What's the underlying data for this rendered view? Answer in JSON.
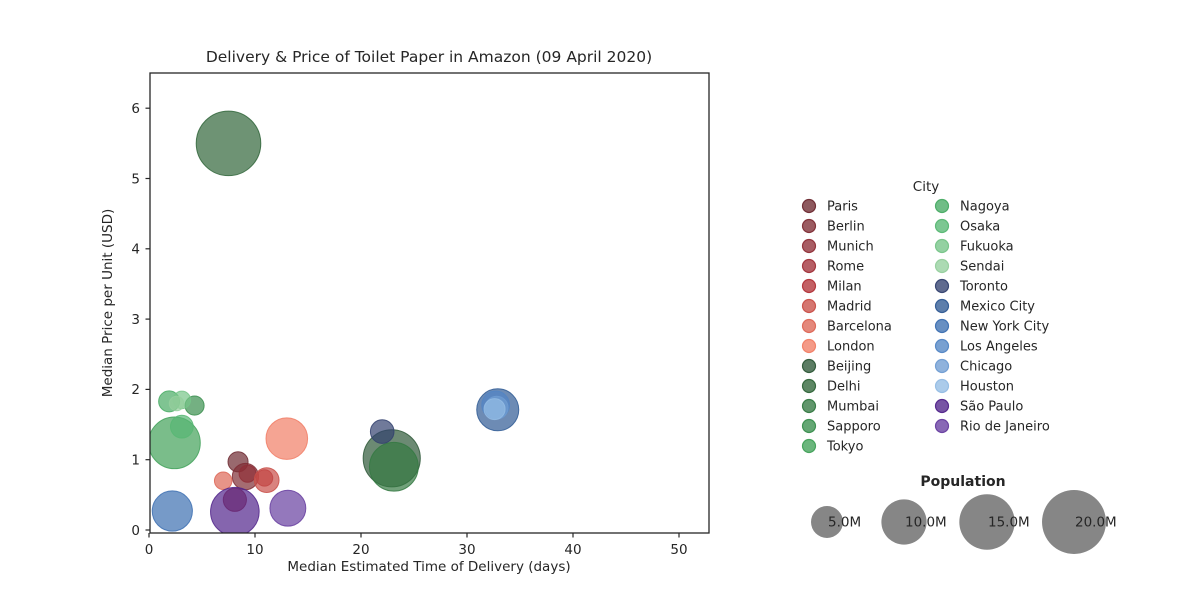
{
  "title": "Delivery & Price of Toilet Paper in Amazon (09 April 2020)",
  "axes": {
    "x_label": "Median Estimated Time of Delivery (days)",
    "y_label": "Median Price per Unit (USD)",
    "x_ticks": [
      0,
      10,
      20,
      30,
      40,
      50
    ],
    "y_ticks": [
      0,
      1,
      2,
      3,
      4,
      5,
      6
    ]
  },
  "legend": {
    "title": "City",
    "column1": [
      {
        "label": "Paris",
        "color": "#6e2a31"
      },
      {
        "label": "Berlin",
        "color": "#7f2d35"
      },
      {
        "label": "Munich",
        "color": "#902f38"
      },
      {
        "label": "Rome",
        "color": "#a1313a"
      },
      {
        "label": "Milan",
        "color": "#b23339"
      },
      {
        "label": "Madrid",
        "color": "#c94f48"
      },
      {
        "label": "Barcelona",
        "color": "#dd6656"
      },
      {
        "label": "London",
        "color": "#f17d65"
      },
      {
        "label": "Beijing",
        "color": "#2e5838"
      },
      {
        "label": "Delhi",
        "color": "#306539"
      },
      {
        "label": "Mumbai",
        "color": "#347942"
      },
      {
        "label": "Sapporo",
        "color": "#398e4d"
      },
      {
        "label": "Tokyo",
        "color": "#41a159"
      }
    ],
    "column2": [
      {
        "label": "Nagoya",
        "color": "#48ab64"
      },
      {
        "label": "Osaka",
        "color": "#57b773"
      },
      {
        "label": "Fukuoka",
        "color": "#76c488"
      },
      {
        "label": "Sendai",
        "color": "#95cf9d"
      },
      {
        "label": "Toronto",
        "color": "#33416f"
      },
      {
        "label": "Mexico City",
        "color": "#2f5a94"
      },
      {
        "label": "New York City",
        "color": "#3c6fb1"
      },
      {
        "label": "Los Angeles",
        "color": "#5285c4"
      },
      {
        "label": "Chicago",
        "color": "#6f9cd2"
      },
      {
        "label": "Houston",
        "color": "#94bce4"
      },
      {
        "label": "São Paulo",
        "color": "#51248b"
      },
      {
        "label": "Rio de Janeiro",
        "color": "#673ea0"
      }
    ]
  },
  "size_legend": {
    "title": "Population",
    "items": [
      {
        "label": "5.0M",
        "population_m": 5
      },
      {
        "label": "10.0M",
        "population_m": 10
      },
      {
        "label": "15.0M",
        "population_m": 15
      },
      {
        "label": "20.0M",
        "population_m": 20
      }
    ],
    "circle_color": "#868686"
  },
  "chart_data": {
    "type": "scatter-bubble",
    "xlabel": "Median Estimated Time of Delivery (days)",
    "ylabel": "Median Price per Unit (USD)",
    "xlim": [
      -0.1,
      52.8
    ],
    "ylim": [
      -0.05,
      6.5
    ],
    "grid": false,
    "legend_position": "right",
    "size_encoding": "population_m",
    "points": [
      {
        "city": "Paris",
        "days": 8.4,
        "price": 0.97,
        "population_m": 2.1,
        "color": "#6e2a31"
      },
      {
        "city": "Berlin",
        "days": 9.1,
        "price": 0.76,
        "population_m": 3.6,
        "color": "#7f2d35"
      },
      {
        "city": "Munich",
        "days": 9.3,
        "price": 0.8,
        "population_m": 1.5,
        "color": "#902f38"
      },
      {
        "city": "Rome",
        "days": 8.1,
        "price": 0.43,
        "population_m": 2.8,
        "color": "#a1313a"
      },
      {
        "city": "Milan",
        "days": 10.9,
        "price": 0.74,
        "population_m": 1.4,
        "color": "#b23339"
      },
      {
        "city": "Madrid",
        "days": 11.1,
        "price": 0.71,
        "population_m": 3.2,
        "color": "#c94f48"
      },
      {
        "city": "Barcelona",
        "days": 7.0,
        "price": 0.7,
        "population_m": 1.6,
        "color": "#dd6656"
      },
      {
        "city": "London",
        "days": 13.0,
        "price": 1.3,
        "population_m": 9.0,
        "color": "#f17d65"
      },
      {
        "city": "Beijing",
        "days": 22.9,
        "price": 1.02,
        "population_m": 17.0,
        "color": "#2e5838"
      },
      {
        "city": "Delhi",
        "days": 7.5,
        "price": 5.5,
        "population_m": 21.7,
        "color": "#306539"
      },
      {
        "city": "Mumbai",
        "days": 23.1,
        "price": 0.9,
        "population_m": 12.4,
        "color": "#347942"
      },
      {
        "city": "Sapporo",
        "days": 4.3,
        "price": 1.77,
        "population_m": 1.9,
        "color": "#398e4d"
      },
      {
        "city": "Tokyo",
        "days": 2.4,
        "price": 1.24,
        "population_m": 13.9,
        "color": "#41a159"
      },
      {
        "city": "Nagoya",
        "days": 1.9,
        "price": 1.83,
        "population_m": 2.3,
        "color": "#48ab64"
      },
      {
        "city": "Osaka",
        "days": 3.1,
        "price": 1.47,
        "population_m": 2.7,
        "color": "#57b773"
      },
      {
        "city": "Fukuoka",
        "days": 3.1,
        "price": 1.85,
        "population_m": 1.6,
        "color": "#76c488"
      },
      {
        "city": "Sendai",
        "days": 2.6,
        "price": 1.8,
        "population_m": 1.1,
        "color": "#95cf9d"
      },
      {
        "city": "Toronto",
        "days": 22.0,
        "price": 1.4,
        "population_m": 2.9,
        "color": "#33416f"
      },
      {
        "city": "Mexico City",
        "days": 32.9,
        "price": 1.71,
        "population_m": 9.2,
        "color": "#2f5a94"
      },
      {
        "city": "New York City",
        "days": 2.2,
        "price": 0.27,
        "population_m": 8.4,
        "color": "#3c6fb1"
      },
      {
        "city": "Los Angeles",
        "days": 32.7,
        "price": 1.78,
        "population_m": 4.0,
        "color": "#5285c4"
      },
      {
        "city": "Chicago",
        "days": 32.8,
        "price": 1.74,
        "population_m": 2.7,
        "color": "#6f9cd2"
      },
      {
        "city": "Houston",
        "days": 32.6,
        "price": 1.72,
        "population_m": 2.3,
        "color": "#94bce4"
      },
      {
        "city": "São Paulo",
        "days": 8.1,
        "price": 0.26,
        "population_m": 12.3,
        "color": "#51248b"
      },
      {
        "city": "Rio de Janeiro",
        "days": 13.1,
        "price": 0.31,
        "population_m": 6.7,
        "color": "#673ea0"
      }
    ]
  }
}
